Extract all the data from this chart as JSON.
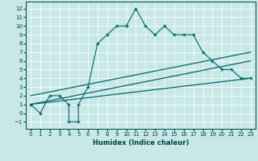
{
  "xlabel": "Humidex (Indice chaleur)",
  "bg_color": "#c8e8e8",
  "line_color": "#006666",
  "xlim": [
    -0.5,
    23.5
  ],
  "ylim": [
    -1.8,
    12.8
  ],
  "xticks": [
    0,
    1,
    2,
    3,
    4,
    5,
    6,
    7,
    8,
    9,
    10,
    11,
    12,
    13,
    14,
    15,
    16,
    17,
    18,
    19,
    20,
    21,
    22,
    23
  ],
  "yticks": [
    -1,
    0,
    1,
    2,
    3,
    4,
    5,
    6,
    7,
    8,
    9,
    10,
    11,
    12
  ],
  "series1_x": [
    0,
    1,
    2,
    3,
    4,
    4,
    5,
    5,
    6,
    7,
    8,
    9,
    10,
    10,
    11,
    12,
    13,
    14,
    15,
    16,
    17,
    18,
    19,
    20,
    21,
    22,
    23
  ],
  "series1_y": [
    1,
    0,
    2,
    2,
    1,
    -1,
    -1,
    1,
    3,
    8,
    9,
    10,
    10,
    10,
    12,
    10,
    9,
    10,
    9,
    9,
    9,
    7,
    6,
    5,
    5,
    4,
    4
  ],
  "line2_x": [
    0,
    23
  ],
  "line2_y": [
    1,
    6
  ],
  "line3_x": [
    0,
    23
  ],
  "line3_y": [
    1,
    4
  ],
  "line4_x": [
    0,
    23
  ],
  "line4_y": [
    2,
    7
  ],
  "tick_fontsize": 5,
  "xlabel_fontsize": 6,
  "grid_color": "#ffffff",
  "spine_color": "#004444"
}
